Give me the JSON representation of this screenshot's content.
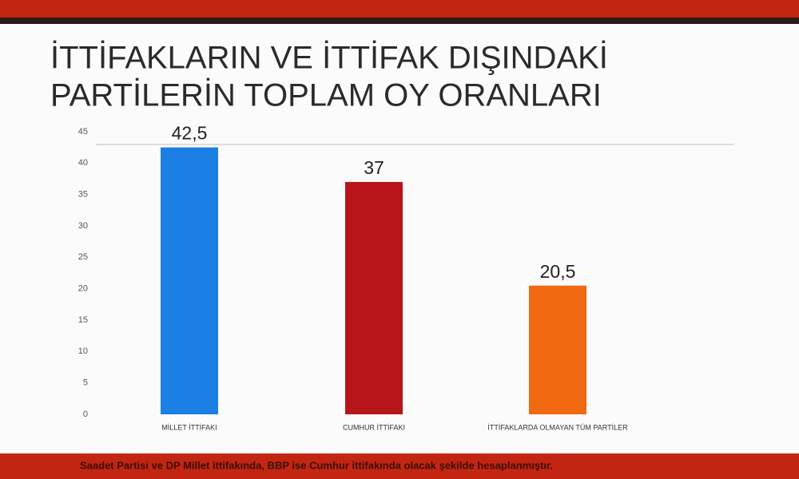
{
  "chart_data": {
    "type": "bar",
    "title_lines": [
      "İTTİFAKLARIN VE İTTİFAK DIŞINDAKİ",
      "PARTİLERİN TOPLAM OY ORANLARI"
    ],
    "categories": [
      "MİLLET İTTİFAKI",
      "CUMHUR İTTİFAKI",
      "İTTİFAKLARDA OLMAYAN TÜM PARTİLER"
    ],
    "values": [
      42.5,
      37,
      20.5
    ],
    "value_labels": [
      "42,5",
      "37",
      "20,5"
    ],
    "colors": [
      "#1b7fe3",
      "#b8151b",
      "#f06810"
    ],
    "ylim": [
      0,
      45
    ],
    "yticks": [
      0,
      5,
      10,
      15,
      20,
      25,
      30,
      35,
      40,
      45
    ],
    "footnote": "Saadet Partisi ve DP Millet ittifakında, BBP ise Cumhur ittifakında olacak şekilde hesaplanmıştır."
  }
}
